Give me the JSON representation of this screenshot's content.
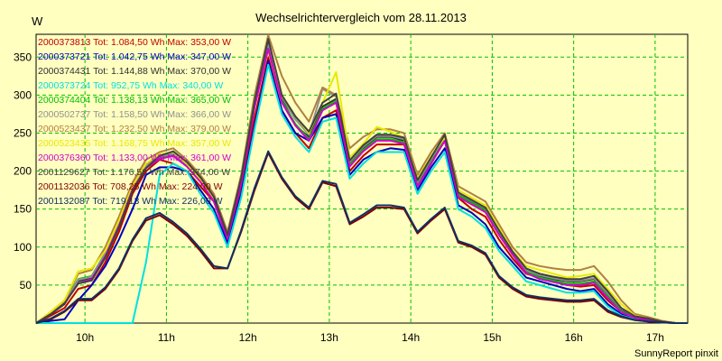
{
  "chart_data": {
    "type": "line",
    "title": "Wechselrichtervergleich vom 28.11.2013",
    "ylabel": "W",
    "xlabel": "",
    "ylim": [
      0,
      380
    ],
    "xlim": [
      9.4,
      17.4
    ],
    "y_ticks": [
      50,
      100,
      150,
      200,
      250,
      300,
      350
    ],
    "x_ticks": [
      10,
      11,
      12,
      13,
      14,
      15,
      16,
      17
    ],
    "x_tick_labels": [
      "10h",
      "11h",
      "12h",
      "13h",
      "14h",
      "15h",
      "16h",
      "17h"
    ],
    "grid": true,
    "legend_position": "top-left",
    "x": [
      9.4,
      9.583,
      9.75,
      9.917,
      10.083,
      10.25,
      10.417,
      10.583,
      10.75,
      10.917,
      11.083,
      11.25,
      11.417,
      11.583,
      11.75,
      11.917,
      12.083,
      12.25,
      12.417,
      12.583,
      12.75,
      12.917,
      13.083,
      13.25,
      13.417,
      13.583,
      13.75,
      13.917,
      14.083,
      14.25,
      14.417,
      14.583,
      14.75,
      14.917,
      15.083,
      15.25,
      15.417,
      15.583,
      15.75,
      15.917,
      16.083,
      16.25,
      16.417,
      16.583,
      16.75,
      16.917,
      17.083,
      17.25,
      17.4
    ],
    "series": [
      {
        "name": "2000373813 Tot: 1.084,50 Wh Max: 353,00 W",
        "color": "#c00000",
        "values": [
          0,
          10,
          20,
          45,
          50,
          80,
          120,
          170,
          200,
          215,
          210,
          200,
          180,
          160,
          110,
          180,
          270,
          350,
          280,
          250,
          230,
          270,
          280,
          200,
          220,
          235,
          235,
          235,
          180,
          210,
          240,
          165,
          150,
          140,
          110,
          85,
          65,
          60,
          55,
          50,
          48,
          50,
          30,
          15,
          8,
          5,
          2,
          0,
          0
        ]
      },
      {
        "name": "2000373721 Tot: 1.042,75 Wh Max: 347,00 W",
        "color": "#0000c0",
        "values": [
          0,
          3,
          5,
          30,
          50,
          75,
          110,
          150,
          195,
          205,
          205,
          200,
          175,
          150,
          105,
          170,
          260,
          345,
          280,
          250,
          240,
          270,
          275,
          195,
          215,
          225,
          230,
          228,
          175,
          205,
          230,
          155,
          145,
          130,
          100,
          80,
          60,
          55,
          50,
          45,
          42,
          45,
          25,
          12,
          6,
          4,
          2,
          0,
          0
        ]
      },
      {
        "name": "2000374431 Tot: 1.144,88 Wh Max: 370,00 W",
        "color": "#303030",
        "values": [
          0,
          12,
          25,
          55,
          60,
          90,
          130,
          180,
          210,
          220,
          225,
          210,
          190,
          165,
          115,
          190,
          290,
          370,
          295,
          260,
          245,
          285,
          295,
          210,
          230,
          245,
          245,
          240,
          185,
          215,
          245,
          170,
          160,
          150,
          120,
          90,
          70,
          62,
          58,
          55,
          55,
          58,
          38,
          18,
          8,
          5,
          2,
          0,
          0
        ]
      },
      {
        "name": "2000373724 Tot: 952,75 Wh Max: 340,00 W",
        "color": "#00e0e0",
        "values": [
          0,
          0,
          0,
          0,
          0,
          0,
          0,
          0,
          80,
          195,
          210,
          200,
          170,
          145,
          100,
          165,
          255,
          340,
          275,
          245,
          225,
          265,
          270,
          190,
          210,
          225,
          225,
          225,
          170,
          200,
          225,
          150,
          140,
          125,
          95,
          75,
          55,
          50,
          45,
          40,
          40,
          42,
          22,
          10,
          5,
          3,
          1,
          0,
          0
        ]
      },
      {
        "name": "2000374404 Tot: 1.138,13 Wh Max: 365,00 W",
        "color": "#00c000",
        "values": [
          0,
          14,
          28,
          58,
          62,
          92,
          132,
          178,
          205,
          218,
          222,
          208,
          188,
          162,
          112,
          185,
          285,
          365,
          292,
          262,
          242,
          282,
          292,
          208,
          228,
          242,
          242,
          238,
          182,
          212,
          242,
          168,
          158,
          148,
          118,
          92,
          68,
          60,
          56,
          52,
          52,
          55,
          35,
          15,
          7,
          4,
          2,
          0,
          0
        ]
      },
      {
        "name": "2000502737 Tot: 1.158,50 Wh Max: 366,00 W",
        "color": "#909090",
        "values": [
          0,
          13,
          27,
          57,
          61,
          91,
          131,
          177,
          207,
          219,
          223,
          209,
          189,
          163,
          113,
          187,
          288,
          366,
          298,
          268,
          248,
          308,
          298,
          212,
          232,
          246,
          246,
          242,
          186,
          216,
          246,
          171,
          161,
          151,
          121,
          94,
          70,
          63,
          59,
          56,
          56,
          59,
          39,
          19,
          9,
          6,
          2,
          0,
          0
        ]
      },
      {
        "name": "2000523437 Tot: 1.232,50 Wh Max: 379,00 W",
        "color": "#b08040",
        "values": [
          0,
          15,
          30,
          65,
          70,
          100,
          140,
          185,
          215,
          225,
          230,
          215,
          195,
          170,
          120,
          195,
          300,
          379,
          325,
          290,
          265,
          310,
          300,
          230,
          245,
          255,
          255,
          250,
          195,
          225,
          250,
          180,
          170,
          160,
          130,
          100,
          80,
          75,
          72,
          70,
          70,
          75,
          55,
          30,
          12,
          8,
          3,
          0,
          0
        ]
      },
      {
        "name": "2000523435 Tot: 1.168,75 Wh Max: 357,00 W",
        "color": "#e8e800",
        "values": [
          0,
          15,
          30,
          68,
          72,
          95,
          135,
          180,
          210,
          222,
          225,
          210,
          188,
          165,
          115,
          190,
          292,
          357,
          300,
          272,
          250,
          290,
          330,
          218,
          236,
          258,
          252,
          244,
          190,
          220,
          244,
          175,
          165,
          155,
          125,
          95,
          75,
          70,
          65,
          60,
          62,
          65,
          45,
          25,
          10,
          6,
          2,
          0,
          0
        ]
      },
      {
        "name": "2000376360 Tot: 1.133,00 Wh Max: 361,00 W",
        "color": "#d000d0",
        "values": [
          0,
          12,
          26,
          52,
          58,
          88,
          128,
          176,
          204,
          216,
          220,
          206,
          186,
          160,
          111,
          184,
          284,
          361,
          290,
          260,
          240,
          280,
          290,
          206,
          226,
          240,
          240,
          236,
          180,
          210,
          240,
          166,
          156,
          146,
          116,
          90,
          66,
          58,
          54,
          50,
          50,
          53,
          33,
          14,
          7,
          4,
          2,
          0,
          0
        ]
      },
      {
        "name": "2001129627 Tot: 1.176,50 Wh Max: 374,00 W",
        "color": "#404040",
        "values": [
          0,
          12,
          26,
          52,
          56,
          86,
          126,
          174,
          204,
          220,
          226,
          212,
          192,
          166,
          116,
          191,
          292,
          374,
          300,
          272,
          252,
          290,
          302,
          214,
          234,
          248,
          248,
          244,
          188,
          218,
          248,
          172,
          162,
          152,
          122,
          94,
          72,
          65,
          61,
          58,
          58,
          62,
          42,
          20,
          9,
          6,
          2,
          0,
          0
        ]
      },
      {
        "name": "2001132036 Tot: 708,25 Wh Max: 224,00 W",
        "color": "#800000",
        "values": [
          0,
          5,
          15,
          30,
          30,
          45,
          70,
          108,
          135,
          142,
          130,
          115,
          95,
          72,
          72,
          120,
          175,
          224,
          190,
          165,
          150,
          185,
          180,
          130,
          140,
          152,
          152,
          150,
          118,
          135,
          150,
          106,
          100,
          90,
          60,
          45,
          35,
          32,
          30,
          28,
          28,
          30,
          15,
          8,
          4,
          2,
          1,
          0,
          0
        ]
      },
      {
        "name": "2001132087 Tot: 719,13 Wh Max: 226,00 W",
        "color": "#103060",
        "values": [
          0,
          6,
          16,
          32,
          32,
          47,
          72,
          110,
          138,
          145,
          133,
          118,
          98,
          75,
          72,
          122,
          178,
          226,
          192,
          167,
          152,
          187,
          183,
          132,
          143,
          155,
          155,
          152,
          120,
          137,
          152,
          108,
          102,
          92,
          62,
          47,
          37,
          34,
          32,
          30,
          30,
          32,
          17,
          9,
          4,
          2,
          1,
          0,
          0
        ]
      }
    ]
  },
  "footer": "SunnyReport pinxit"
}
